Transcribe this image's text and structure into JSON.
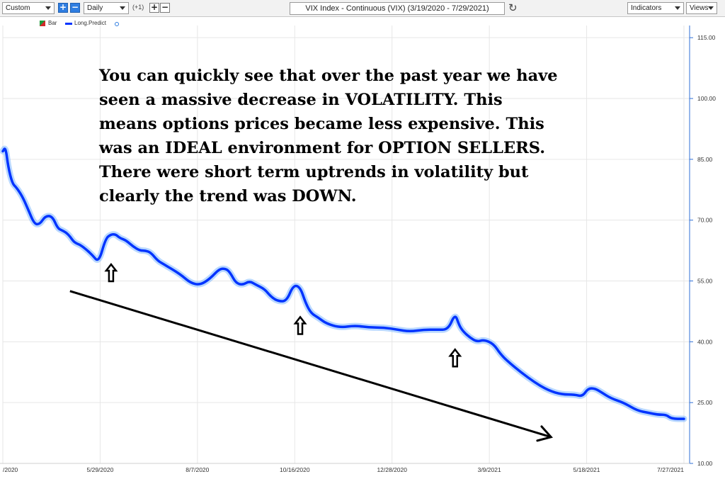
{
  "toolbar": {
    "chart_style": "Custom",
    "period": "Daily",
    "offset": "(+1)",
    "add_label": "+",
    "remove_label": "−",
    "title": "VIX Index - Continuous (VIX) (3/19/2020 - 7/29/2021)",
    "indicators_label": "Indicators",
    "views_label": "Views"
  },
  "legend": {
    "bar_label": "Bar",
    "line_label": "Long.Predict"
  },
  "annotation": "You can quickly see that over the past year we have\nseen a massive decrease in VOLATILITY.  This\nmeans options prices became less expensive.  This\nwas an IDEAL environment for OPTION SELLERS.\nThere were short term uptrends in volatility but\nclearly the trend was DOWN.",
  "colors": {
    "line": "#0033ff",
    "glow": "#7fb8ff",
    "grid": "#e6e6e6",
    "axis": "#2f6fd6"
  },
  "chart_data": {
    "type": "line",
    "ylim": [
      10,
      118
    ],
    "y_ticks": [
      "115.00",
      "100.00",
      "85.00",
      "70.00",
      "55.00",
      "40.00",
      "25.00",
      "10.00"
    ],
    "x_ticks": [
      "/2020",
      "5/29/2020",
      "8/7/2020",
      "10/16/2020",
      "12/28/2020",
      "3/9/2021",
      "5/18/2021",
      "7/27/2021"
    ],
    "xlim": [
      "2020-03-19",
      "2021-07-29"
    ],
    "series": [
      {
        "name": "Long.Predict",
        "x": [
          "2020-03-19",
          "2020-03-21",
          "2020-03-23",
          "2020-03-26",
          "2020-03-29",
          "2020-04-02",
          "2020-04-06",
          "2020-04-11",
          "2020-04-15",
          "2020-04-19",
          "2020-04-24",
          "2020-04-28",
          "2020-05-01",
          "2020-05-04",
          "2020-05-07",
          "2020-05-10",
          "2020-05-14",
          "2020-05-18",
          "2020-05-23",
          "2020-05-28",
          "2020-06-02",
          "2020-06-06",
          "2020-06-09",
          "2020-06-11",
          "2020-06-13",
          "2020-06-17",
          "2020-06-22",
          "2020-06-27",
          "2020-07-01",
          "2020-07-05",
          "2020-07-10",
          "2020-07-15",
          "2020-07-20",
          "2020-07-27",
          "2020-08-03",
          "2020-08-10",
          "2020-08-17",
          "2020-08-24",
          "2020-08-29",
          "2020-09-01",
          "2020-09-05",
          "2020-09-10",
          "2020-09-15",
          "2020-09-20",
          "2020-09-26",
          "2020-10-01",
          "2020-10-06",
          "2020-10-12",
          "2020-10-17",
          "2020-10-22",
          "2020-10-26",
          "2020-10-30",
          "2020-11-04",
          "2020-11-10",
          "2020-11-20",
          "2020-12-01",
          "2020-12-12",
          "2020-12-22",
          "2021-01-01",
          "2021-01-10",
          "2021-01-20",
          "2021-01-30",
          "2021-02-07",
          "2021-02-12",
          "2021-02-15",
          "2021-02-18",
          "2021-02-23",
          "2021-02-28",
          "2021-03-05",
          "2021-03-12",
          "2021-03-17",
          "2021-03-23",
          "2021-04-01",
          "2021-04-11",
          "2021-04-21",
          "2021-05-01",
          "2021-05-10",
          "2021-05-16",
          "2021-05-20",
          "2021-05-25",
          "2021-05-30",
          "2021-06-06",
          "2021-06-15",
          "2021-06-25",
          "2021-07-03",
          "2021-07-10",
          "2021-07-16",
          "2021-07-20",
          "2021-07-29"
        ],
        "y": [
          87,
          88,
          83,
          79,
          78,
          76,
          73,
          69,
          69,
          71,
          71,
          68,
          67.5,
          67,
          66,
          64.5,
          64,
          63,
          61.5,
          59.5,
          65.5,
          66.5,
          66.5,
          66,
          65.5,
          65,
          63.5,
          62.5,
          62.5,
          62,
          60,
          59,
          58,
          56.5,
          54.5,
          54,
          55.5,
          58,
          58,
          57,
          54.5,
          54,
          55,
          54,
          53,
          51,
          50,
          50,
          54,
          53.5,
          49.5,
          47,
          46,
          44.5,
          43.5,
          44,
          43.5,
          43.5,
          43,
          42.5,
          43,
          43,
          43,
          47,
          44,
          42.5,
          41,
          40,
          40.5,
          39.5,
          37,
          35,
          32.5,
          30,
          28,
          27,
          27,
          26.5,
          28.5,
          28.5,
          27.5,
          26,
          25,
          23,
          22.5,
          22,
          22,
          21,
          21
        ]
      }
    ],
    "arrows_up_at": [
      {
        "x": "2020-06-06",
        "y": 57
      },
      {
        "x": "2020-10-22",
        "y": 44
      },
      {
        "x": "2021-02-12",
        "y": 36
      }
    ],
    "trend_arrow": {
      "x": [
        "2020-05-07",
        "2021-04-23"
      ],
      "y": [
        52.5,
        16.5
      ]
    }
  }
}
